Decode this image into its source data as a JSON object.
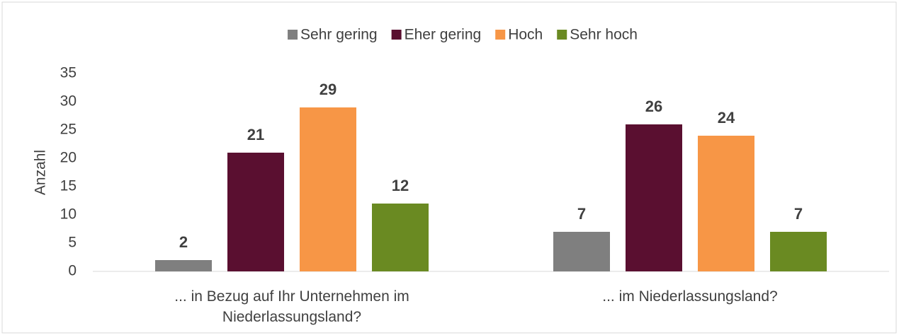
{
  "chart_data": {
    "type": "bar",
    "categories": [
      "... in Bezug auf Ihr Unternehmen im Niederlassungsland?",
      "... im Niederlassungsland?"
    ],
    "series": [
      {
        "name": "Sehr gering",
        "color": "#7f7f7f",
        "values": [
          2,
          7
        ]
      },
      {
        "name": "Eher gering",
        "color": "#5a0f30",
        "values": [
          21,
          26
        ]
      },
      {
        "name": "Hoch",
        "color": "#f79646",
        "values": [
          29,
          24
        ]
      },
      {
        "name": "Sehr hoch",
        "color": "#6a8a22",
        "values": [
          12,
          7
        ]
      }
    ],
    "ylabel": "Anzahl",
    "ylim": [
      0,
      35
    ],
    "yticks": [
      0,
      5,
      10,
      15,
      20,
      25,
      30,
      35
    ],
    "grid": false,
    "legend": "top"
  }
}
